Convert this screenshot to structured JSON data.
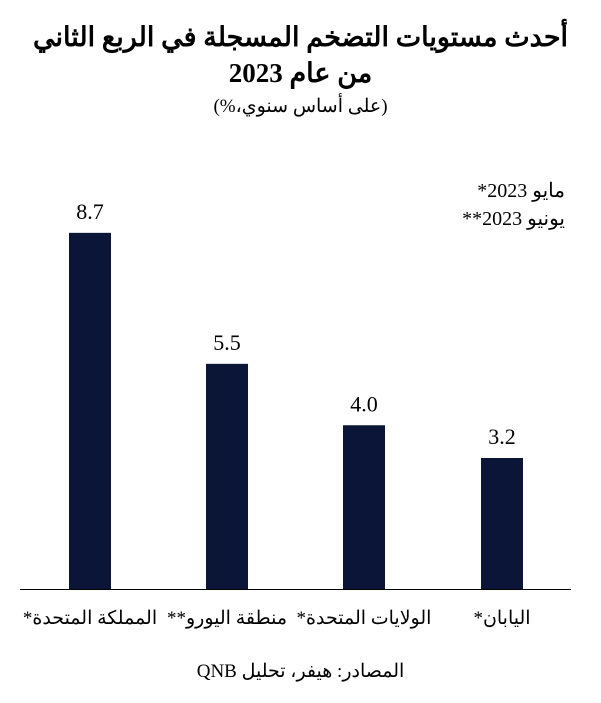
{
  "title_line1": "أحدث مستويات التضخم المسجلة في الربع الثاني",
  "title_line2": "من عام 2023",
  "subtitle": "(على أساس سنوي،%)",
  "notes": [
    "مايو 2023*",
    "يونيو 2023**"
  ],
  "source": "المصادر: هيفر، تحليل QNB",
  "chart_data": {
    "type": "bar",
    "title": "أحدث مستويات التضخم المسجلة في الربع الثاني من عام 2023",
    "categories": [
      "المملكة المتحدة*",
      "منطقة اليورو**",
      "الولايات المتحدة*",
      "اليابان*"
    ],
    "values": [
      8.7,
      5.5,
      4.0,
      3.2
    ],
    "value_labels": [
      "8.7",
      "5.5",
      "4.0",
      "3.2"
    ],
    "ylim": [
      0,
      9.6
    ],
    "bar_color": "#0b1537",
    "grid": false,
    "xlabel": "",
    "ylabel": ""
  }
}
